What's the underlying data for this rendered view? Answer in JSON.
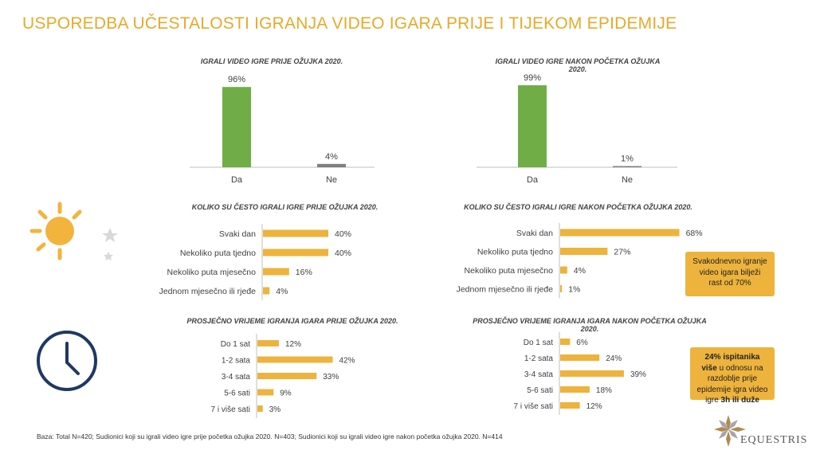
{
  "page": {
    "title": "USPOREDBA UČESTALOSTI IGRANJA VIDEO IGARA PRIJE I TIJEKOM EPIDEMIJE",
    "footer": "Baza: Total N=420; Sudionici koji su igrali video igre prije početka ožujka 2020. N=403; Sudionici koji su igrali video igre nakon početka ožujka 2020. N=414",
    "logo_text": "EQUESTRIS",
    "note1": "Svakodnevno igranje video igara bilježi rast od 70%",
    "note2_bold": "24% ispitanika više",
    "note2_rest": " u odnosu na razdoblje prije epidemije igra video igre ",
    "note2_bold2": "3h ili duže",
    "colors": {
      "accent": "#e9a92a",
      "green": "#70ad47",
      "grey": "#7f7f7f",
      "bar": "#edb33c",
      "icon_navy": "#1f3864",
      "sun": "#f2b43c",
      "moon": "#d9d9d9"
    },
    "icons": [
      "sun-moon-icon",
      "clock-icon"
    ]
  },
  "chart_data": [
    {
      "type": "bar",
      "title": "IGRALI VIDEO IGRE PRIJE OŽUJKA 2020.",
      "categories": [
        "Da",
        "Ne"
      ],
      "values": [
        96,
        4
      ],
      "labels": [
        "96%",
        "4%"
      ],
      "colors": [
        "#70ad47",
        "#7f7f7f"
      ],
      "ylim": [
        0,
        100
      ]
    },
    {
      "type": "bar",
      "title": "IGRALI VIDEO IGRE NAKON POČETKA OŽUJKA 2020.",
      "categories": [
        "Da",
        "Ne"
      ],
      "values": [
        99,
        1
      ],
      "labels": [
        "99%",
        "1%"
      ],
      "colors": [
        "#70ad47",
        "#7f7f7f"
      ],
      "ylim": [
        0,
        100
      ]
    },
    {
      "type": "bar",
      "orientation": "horizontal",
      "title": "KOLIKO SU ČESTO IGRALI IGRE PRIJE OŽUJKA 2020.",
      "categories": [
        "Svaki dan",
        "Nekoliko puta tjedno",
        "Nekoliko puta mjesečno",
        "Jednom mjesečno ili rjeđe"
      ],
      "values": [
        40,
        40,
        16,
        4
      ],
      "labels": [
        "40%",
        "40%",
        "16%",
        "4%"
      ]
    },
    {
      "type": "bar",
      "orientation": "horizontal",
      "title": "KOLIKO SU ČESTO IGRALI IGRE NAKON POČETKA OŽUJKA 2020.",
      "categories": [
        "Svaki dan",
        "Nekoliko puta tjedno",
        "Nekoliko puta mjesečno",
        "Jednom mjesečno ili rjeđe"
      ],
      "values": [
        68,
        27,
        4,
        1
      ],
      "labels": [
        "68%",
        "27%",
        "4%",
        "1%"
      ]
    },
    {
      "type": "bar",
      "orientation": "horizontal",
      "title": "PROSJEČNO VRIJEME IGRANJA IGARA PRIJE OŽUJKA 2020.",
      "categories": [
        "Do 1 sat",
        "1-2 sata",
        "3-4 sata",
        "5-6 sati",
        "7 i više sati"
      ],
      "values": [
        12,
        42,
        33,
        9,
        3
      ],
      "labels": [
        "12%",
        "42%",
        "33%",
        "9%",
        "3%"
      ]
    },
    {
      "type": "bar",
      "orientation": "horizontal",
      "title": "PROSJEČNO VRIJEME IGRANJA IGARA NAKON POČETKA OŽUJKA 2020.",
      "categories": [
        "Do 1 sat",
        "1-2 sata",
        "3-4 sata",
        "5-6 sati",
        "7 i više sati"
      ],
      "values": [
        6,
        24,
        39,
        18,
        12
      ],
      "labels": [
        "6%",
        "24%",
        "39%",
        "18%",
        "12%"
      ]
    }
  ]
}
